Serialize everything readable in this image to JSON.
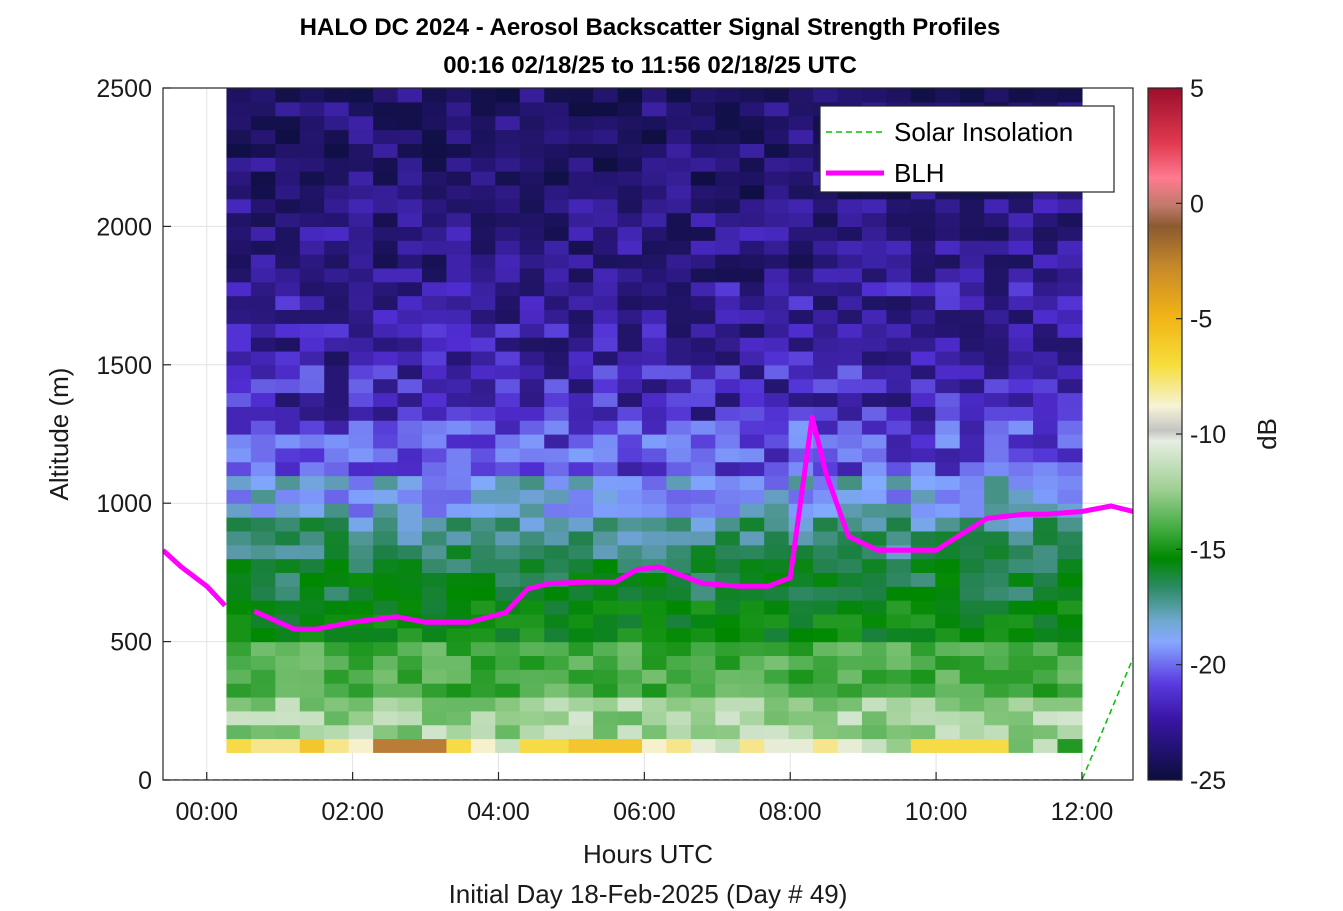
{
  "chart_data": {
    "type": "heatmap",
    "title": "HALO DC 2024 - Aerosol Backscatter Signal Strength Profiles",
    "subtitle": "00:16 02/18/25 to 11:56 02/18/25  UTC",
    "xlabel": "Hours UTC",
    "footnote": "Initial Day 18-Feb-2025 (Day # 49)",
    "ylabel": "Altitude (m)",
    "x_unit": "hours",
    "xlim": [
      -0.6,
      12.7
    ],
    "ylim": [
      0,
      2500
    ],
    "x_ticks": [
      0,
      2,
      4,
      6,
      8,
      10,
      12
    ],
    "x_tick_labels": [
      "00:00",
      "02:00",
      "04:00",
      "06:00",
      "08:00",
      "10:00",
      "12:00"
    ],
    "y_ticks": [
      0,
      500,
      1000,
      1500,
      2000,
      2500
    ],
    "y_tick_labels": [
      "0",
      "500",
      "1000",
      "1500",
      "2000",
      "2500"
    ],
    "grid": true,
    "legend_position": "top-right",
    "colorbar": {
      "label": "dB",
      "range": [
        -25,
        5
      ],
      "ticks": [
        5,
        0,
        -5,
        -10,
        -15,
        -20,
        -25
      ],
      "tick_labels": [
        "5",
        "0",
        "-5",
        "-10",
        "-15",
        "-20",
        "-25"
      ]
    },
    "heatmap": {
      "x_start": 0.27,
      "x_end": 12.0,
      "columns": 35,
      "altitude_bins_m": [
        [
          100,
          150
        ],
        [
          150,
          300
        ],
        [
          300,
          500
        ],
        [
          500,
          650
        ],
        [
          650,
          800
        ],
        [
          800,
          950
        ],
        [
          950,
          1100
        ],
        [
          1100,
          1300
        ],
        [
          1300,
          1500
        ],
        [
          1500,
          1800
        ],
        [
          1800,
          2100
        ],
        [
          2100,
          2500
        ]
      ],
      "bin_values_db": [
        -8,
        -12,
        -14,
        -16,
        -17,
        -18,
        -19.5,
        -21,
        -22,
        -22.5,
        -23,
        -23.5
      ],
      "column_surface_db": [
        -7,
        -8,
        -8,
        -6,
        -8,
        -9,
        -3,
        -3,
        -3,
        -7,
        -9,
        -11,
        -7,
        -7,
        -6,
        -6,
        -6,
        -9,
        -8,
        -10,
        -11,
        -8,
        -10,
        -10,
        -8,
        -10,
        -11,
        -12,
        -7,
        -7,
        -7,
        -7,
        -13,
        -11,
        -15
      ]
    },
    "series": [
      {
        "name": "Solar Insolation",
        "style": "dashed",
        "color": "#00c000",
        "x": [
          -0.6,
          12.0,
          12.7
        ],
        "y": [
          0,
          0,
          440
        ]
      },
      {
        "name": "BLH",
        "style": "solid",
        "color": "#ff00ff",
        "segments": [
          {
            "x": [
              -0.6,
              -0.35,
              0.0,
              0.25
            ],
            "y": [
              830,
              770,
              700,
              630
            ]
          },
          {
            "x": [
              0.65,
              1.2,
              1.5,
              2.0,
              2.6,
              3.0,
              3.6,
              4.1,
              4.4,
              4.7,
              5.2,
              5.6,
              5.9,
              6.2,
              6.8,
              7.3,
              7.7,
              8.0,
              8.3,
              8.5,
              8.8,
              9.2,
              9.7,
              10.0,
              10.3,
              10.7,
              11.2,
              11.5,
              12.0,
              12.4,
              12.7
            ],
            "y": [
              610,
              545,
              545,
              570,
              590,
              570,
              570,
              605,
              690,
              710,
              715,
              715,
              760,
              770,
              710,
              700,
              700,
              730,
              1310,
              1100,
              880,
              830,
              830,
              830,
              880,
              945,
              960,
              960,
              970,
              990,
              970
            ]
          }
        ]
      }
    ]
  }
}
